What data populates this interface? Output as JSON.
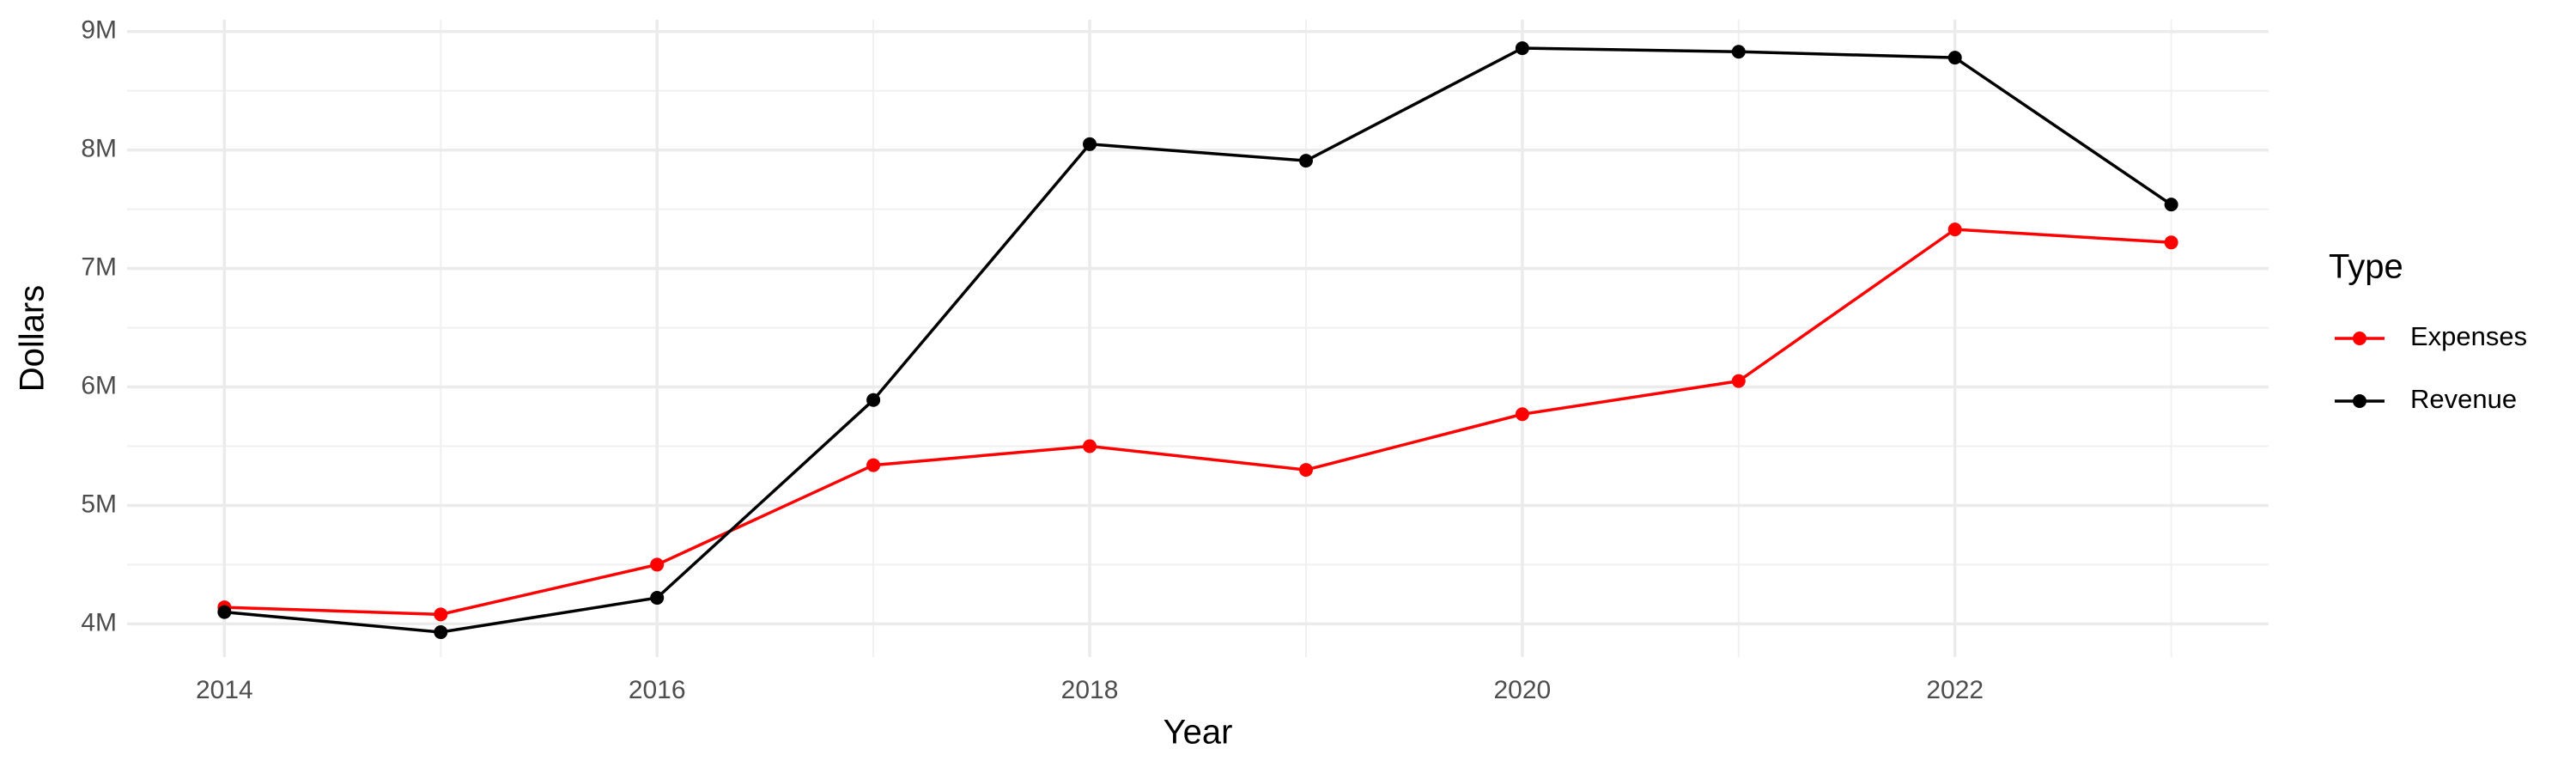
{
  "chart_data": {
    "type": "line",
    "x_label": "Year",
    "y_label": "Dollars",
    "legend_title": "Type",
    "x": [
      2014,
      2015,
      2016,
      2017,
      2018,
      2019,
      2020,
      2021,
      2022,
      2023
    ],
    "series": [
      {
        "name": "Expenses",
        "color": "#ff0000",
        "values": [
          4140000,
          4080000,
          4500000,
          5340000,
          5500000,
          5300000,
          5770000,
          6050000,
          7330000,
          7220000
        ]
      },
      {
        "name": "Revenue",
        "color": "#000000",
        "values": [
          4100000,
          3930000,
          4220000,
          5890000,
          8050000,
          7910000,
          8860000,
          8830000,
          8780000,
          7540000
        ]
      }
    ],
    "xlim": [
      2013.55,
      2023.45
    ],
    "xticks": [
      2014,
      2016,
      2018,
      2020,
      2022
    ],
    "ylim": [
      3720000,
      9100000
    ],
    "yticks": [
      {
        "value": 4000000,
        "label": "4M"
      },
      {
        "value": 5000000,
        "label": "5M"
      },
      {
        "value": 6000000,
        "label": "6M"
      },
      {
        "value": 7000000,
        "label": "7M"
      },
      {
        "value": 8000000,
        "label": "8M"
      },
      {
        "value": 9000000,
        "label": "9M"
      }
    ],
    "grid": true,
    "minor_grid": true,
    "legend": "right"
  }
}
